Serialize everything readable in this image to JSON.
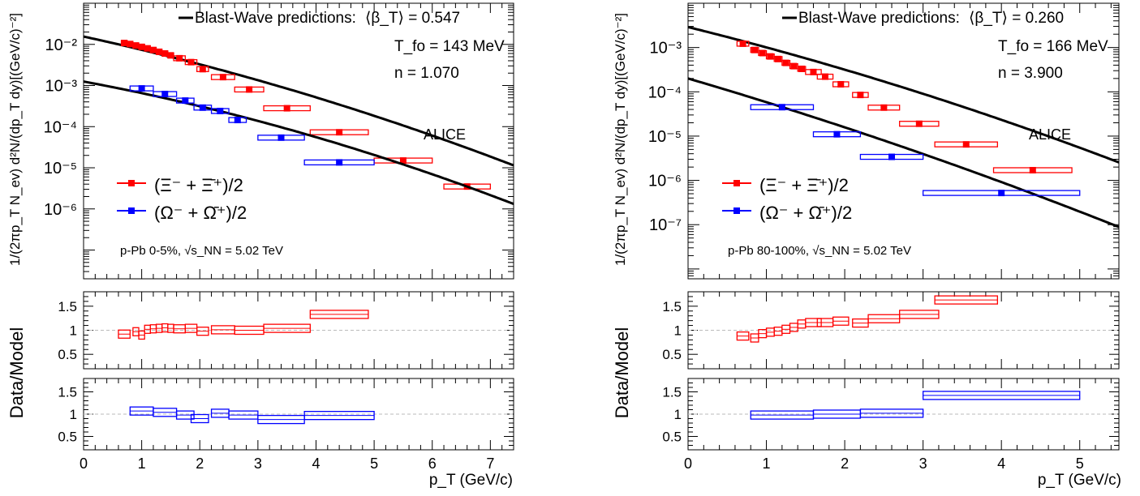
{
  "chart_data": [
    {
      "type": "scatter",
      "panel_id": "left",
      "main_ylabel": "1/(2πp_T N_ev) d²N/(dp_T dy)[(GeV/c)⁻²]",
      "ratio_ylabel": "Data/Model",
      "xlabel": "p_T (GeV/c)",
      "xlim": [
        0,
        7.4
      ],
      "x_ticks": [
        "0",
        "1",
        "2",
        "3",
        "4",
        "5",
        "6",
        "7"
      ],
      "ylim": [
        2e-08,
        0.1
      ],
      "y_log": true,
      "y_ticks": [
        "10⁻²",
        "10⁻³",
        "10⁻⁴",
        "10⁻⁵",
        "10⁻⁶"
      ],
      "ratio_ylim": [
        0.2,
        1.8
      ],
      "ratio_ticks": [
        "1.5",
        "1",
        "0.5"
      ],
      "annotation": {
        "legend_line": "Blast-Wave predictions:",
        "beta": "⟨β_T⟩ = 0.547",
        "tfo": "T_fo = 143 MeV",
        "n": "n = 1.070",
        "experiment": "ALICE",
        "system": "p-Pb 0-5%, √s_NN = 5.02 TeV"
      },
      "legend_xi": "(Ξ⁻ + Ξ̄⁺)/2",
      "legend_omega": "(Ω⁻ + Ω̄⁺)/2",
      "series": [
        {
          "key": "xi",
          "color": "#ff0000",
          "points": [
            {
              "x": 0.7,
              "y": 0.0108,
              "w": 0.1
            },
            {
              "x": 0.8,
              "y": 0.0102,
              "w": 0.1
            },
            {
              "x": 0.9,
              "y": 0.0094,
              "w": 0.1
            },
            {
              "x": 1.0,
              "y": 0.0087,
              "w": 0.1
            },
            {
              "x": 1.1,
              "y": 0.008,
              "w": 0.1
            },
            {
              "x": 1.2,
              "y": 0.0073,
              "w": 0.1
            },
            {
              "x": 1.3,
              "y": 0.0066,
              "w": 0.1
            },
            {
              "x": 1.4,
              "y": 0.006,
              "w": 0.1
            },
            {
              "x": 1.5,
              "y": 0.0054,
              "w": 0.1
            },
            {
              "x": 1.65,
              "y": 0.0046,
              "w": 0.2
            },
            {
              "x": 1.85,
              "y": 0.0037,
              "w": 0.2
            },
            {
              "x": 2.05,
              "y": 0.0025,
              "w": 0.2
            },
            {
              "x": 2.4,
              "y": 0.0016,
              "w": 0.4
            },
            {
              "x": 2.85,
              "y": 0.0008,
              "w": 0.5
            },
            {
              "x": 3.5,
              "y": 0.00028,
              "w": 0.8
            },
            {
              "x": 4.4,
              "y": 7.3e-05,
              "w": 1.0
            },
            {
              "x": 5.5,
              "y": 1.5e-05,
              "w": 1.0
            },
            {
              "x": 6.6,
              "y": 3.5e-06,
              "w": 0.8
            }
          ],
          "curve": {
            "A": 0.0155,
            "x0": 0.4,
            "a": 0.3066,
            "b": 0.01576
          },
          "ratios": [
            {
              "x": 0.7,
              "r": 0.92,
              "w": 0.2
            },
            {
              "x": 0.9,
              "r": 0.97,
              "w": 0.1
            },
            {
              "x": 1.0,
              "r": 0.9,
              "w": 0.1
            },
            {
              "x": 1.1,
              "r": 1.02,
              "w": 0.1
            },
            {
              "x": 1.2,
              "r": 1.03,
              "w": 0.1
            },
            {
              "x": 1.3,
              "r": 1.04,
              "w": 0.1
            },
            {
              "x": 1.4,
              "r": 1.05,
              "w": 0.1
            },
            {
              "x": 1.5,
              "r": 1.04,
              "w": 0.1
            },
            {
              "x": 1.65,
              "r": 1.03,
              "w": 0.2
            },
            {
              "x": 1.85,
              "r": 1.04,
              "w": 0.2
            },
            {
              "x": 2.05,
              "r": 0.98,
              "w": 0.2
            },
            {
              "x": 2.4,
              "r": 1.01,
              "w": 0.4
            },
            {
              "x": 2.85,
              "r": 1.0,
              "w": 0.5
            },
            {
              "x": 3.5,
              "r": 1.04,
              "w": 0.8
            },
            {
              "x": 4.4,
              "r": 1.33,
              "w": 1.0
            }
          ]
        },
        {
          "key": "omega",
          "color": "#0000ff",
          "points": [
            {
              "x": 1.0,
              "y": 0.00085,
              "w": 0.4
            },
            {
              "x": 1.4,
              "y": 0.00062,
              "w": 0.4
            },
            {
              "x": 1.75,
              "y": 0.00043,
              "w": 0.3
            },
            {
              "x": 2.05,
              "y": 0.00029,
              "w": 0.3
            },
            {
              "x": 2.35,
              "y": 0.00024,
              "w": 0.3
            },
            {
              "x": 2.65,
              "y": 0.000145,
              "w": 0.3
            },
            {
              "x": 3.4,
              "y": 5.4e-05,
              "w": 0.8
            },
            {
              "x": 4.4,
              "y": 1.35e-05,
              "w": 1.2
            }
          ],
          "curve": {
            "A": 0.00125,
            "x0": 0.3,
            "a": 0.2628,
            "b": 0.01883
          },
          "ratios": [
            {
              "x": 1.0,
              "r": 1.07,
              "w": 0.4
            },
            {
              "x": 1.4,
              "r": 1.04,
              "w": 0.4
            },
            {
              "x": 1.75,
              "r": 0.98,
              "w": 0.3
            },
            {
              "x": 2.0,
              "r": 0.9,
              "w": 0.3
            },
            {
              "x": 2.35,
              "r": 1.02,
              "w": 0.3
            },
            {
              "x": 2.75,
              "r": 0.98,
              "w": 0.5
            },
            {
              "x": 3.4,
              "r": 0.88,
              "w": 0.8
            },
            {
              "x": 4.4,
              "r": 0.97,
              "w": 1.2
            }
          ]
        }
      ]
    },
    {
      "type": "scatter",
      "panel_id": "right",
      "main_ylabel": "1/(2πp_T N_ev) d²N/(dp_T dy)[(GeV/c)⁻²]",
      "ratio_ylabel": "Data/Model",
      "xlabel": "p_T (GeV/c)",
      "xlim": [
        0,
        5.5
      ],
      "x_ticks": [
        "0",
        "1",
        "2",
        "3",
        "4",
        "5"
      ],
      "ylim": [
        6e-09,
        0.01
      ],
      "y_log": true,
      "y_ticks": [
        "10⁻³",
        "10⁻⁴",
        "10⁻⁵",
        "10⁻⁶",
        "10⁻⁷"
      ],
      "ratio_ylim": [
        0.2,
        1.8
      ],
      "ratio_ticks": [
        "1.5",
        "1",
        "0.5"
      ],
      "annotation": {
        "legend_line": "Blast-Wave predictions:",
        "beta": "⟨β_T⟩ = 0.260",
        "tfo": "T_fo = 166 MeV",
        "n": "n = 3.900",
        "experiment": "ALICE",
        "system": "p-Pb 80-100%, √s_NN = 5.02 TeV"
      },
      "legend_xi": "(Ξ⁻ + Ξ̄⁺)/2",
      "legend_omega": "(Ω⁻ + Ω̄⁺)/2",
      "series": [
        {
          "key": "xi",
          "color": "#ff0000",
          "points": [
            {
              "x": 0.7,
              "y": 0.00122,
              "w": 0.15
            },
            {
              "x": 0.85,
              "y": 0.00088,
              "w": 0.1
            },
            {
              "x": 0.95,
              "y": 0.00075,
              "w": 0.1
            },
            {
              "x": 1.05,
              "y": 0.00063,
              "w": 0.1
            },
            {
              "x": 1.15,
              "y": 0.00055,
              "w": 0.1
            },
            {
              "x": 1.25,
              "y": 0.00045,
              "w": 0.1
            },
            {
              "x": 1.35,
              "y": 0.00038,
              "w": 0.1
            },
            {
              "x": 1.45,
              "y": 0.00033,
              "w": 0.1
            },
            {
              "x": 1.6,
              "y": 0.00028,
              "w": 0.2
            },
            {
              "x": 1.75,
              "y": 0.00022,
              "w": 0.2
            },
            {
              "x": 1.95,
              "y": 0.000148,
              "w": 0.2
            },
            {
              "x": 2.2,
              "y": 8.5e-05,
              "w": 0.2
            },
            {
              "x": 2.5,
              "y": 4.4e-05,
              "w": 0.4
            },
            {
              "x": 2.95,
              "y": 1.9e-05,
              "w": 0.5
            },
            {
              "x": 3.55,
              "y": 6.5e-06,
              "w": 0.8
            },
            {
              "x": 4.4,
              "y": 1.7e-06,
              "w": 1.0
            }
          ],
          "curve": {
            "A": 0.0029,
            "x0": 0.5,
            "a": 0.4386,
            "b": 0.02125
          },
          "ratios": [
            {
              "x": 0.7,
              "r": 0.88,
              "w": 0.15
            },
            {
              "x": 0.85,
              "r": 0.84,
              "w": 0.1
            },
            {
              "x": 0.95,
              "r": 0.93,
              "w": 0.1
            },
            {
              "x": 1.05,
              "r": 0.96,
              "w": 0.1
            },
            {
              "x": 1.15,
              "r": 0.98,
              "w": 0.1
            },
            {
              "x": 1.25,
              "r": 1.02,
              "w": 0.1
            },
            {
              "x": 1.35,
              "r": 1.06,
              "w": 0.1
            },
            {
              "x": 1.45,
              "r": 1.13,
              "w": 0.1
            },
            {
              "x": 1.6,
              "r": 1.16,
              "w": 0.2
            },
            {
              "x": 1.75,
              "r": 1.16,
              "w": 0.2
            },
            {
              "x": 1.95,
              "r": 1.19,
              "w": 0.2
            },
            {
              "x": 2.2,
              "r": 1.15,
              "w": 0.2
            },
            {
              "x": 2.5,
              "r": 1.24,
              "w": 0.4
            },
            {
              "x": 2.95,
              "r": 1.33,
              "w": 0.5
            },
            {
              "x": 3.55,
              "r": 1.63,
              "w": 0.8
            }
          ]
        },
        {
          "key": "omega",
          "color": "#0000ff",
          "points": [
            {
              "x": 1.2,
              "y": 4.5e-05,
              "w": 0.8
            },
            {
              "x": 1.9,
              "y": 1.1e-05,
              "w": 0.6
            },
            {
              "x": 2.6,
              "y": 3.4e-06,
              "w": 0.8
            },
            {
              "x": 4.0,
              "y": 5.2e-07,
              "w": 2.0
            }
          ],
          "curve": {
            "A": 0.0002,
            "x0": 0.3,
            "a": 0.5184,
            "b": 0.01658
          },
          "ratios": [
            {
              "x": 1.2,
              "r": 0.98,
              "w": 0.8
            },
            {
              "x": 1.9,
              "r": 1.0,
              "w": 0.6
            },
            {
              "x": 2.6,
              "r": 1.02,
              "w": 0.8
            },
            {
              "x": 4.0,
              "r": 1.42,
              "w": 2.0
            }
          ]
        }
      ]
    }
  ]
}
